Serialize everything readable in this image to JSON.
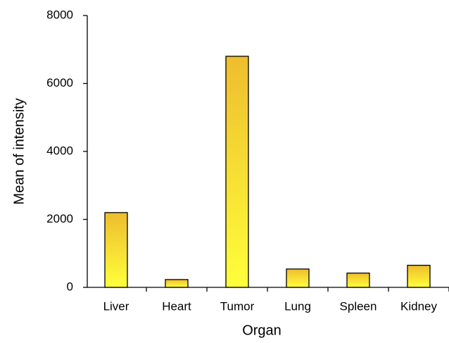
{
  "chart_data": {
    "type": "bar",
    "x_label": "Organ",
    "y_label": "Mean of intensity",
    "categories": [
      "Liver",
      "Heart",
      "Tumor",
      "Lung",
      "Spleen",
      "Kidney"
    ],
    "values": [
      2200,
      230,
      6800,
      540,
      420,
      650
    ],
    "gradient": [
      "#eebd2e",
      "#ffff3a"
    ],
    "ylim": [
      0,
      8000
    ],
    "yticks": [
      0,
      2000,
      4000,
      6000,
      8000
    ],
    "grid": false
  }
}
